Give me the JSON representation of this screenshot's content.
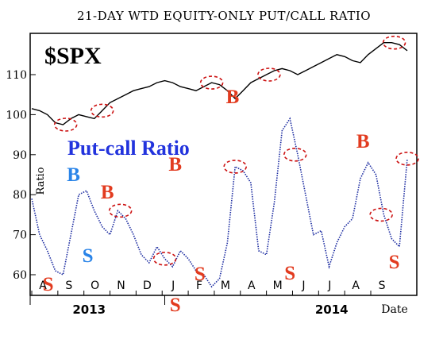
{
  "chart_data": {
    "type": "line",
    "title": "21-DAY WTD EQUITY-ONLY PUT/CALL RATIO",
    "index_label": "$SPX",
    "series_label": "Put-call Ratio",
    "ylabel": "Ratio",
    "xlabel": "Date",
    "yticks": [
      60,
      70,
      80,
      90,
      100,
      110
    ],
    "ylim": [
      55,
      120
    ],
    "months": [
      "A",
      "S",
      "O",
      "N",
      "D",
      "J",
      "F",
      "M",
      "A",
      "M",
      "J",
      "J",
      "A",
      "S"
    ],
    "years": [
      "2013",
      "2014"
    ],
    "x": [
      0,
      0.3,
      0.6,
      0.9,
      1.2,
      1.5,
      1.8,
      2.1,
      2.4,
      2.7,
      3.0,
      3.3,
      3.6,
      3.9,
      4.2,
      4.5,
      4.8,
      5.1,
      5.4,
      5.7,
      6.0,
      6.3,
      6.6,
      6.9,
      7.2,
      7.5,
      7.8,
      8.1,
      8.4,
      8.7,
      9.0,
      9.3,
      9.6,
      9.9,
      10.2,
      10.5,
      10.8,
      11.1,
      11.4,
      11.7,
      12.0,
      12.3,
      12.6,
      12.9,
      13.2,
      13.5,
      13.8,
      14.1,
      14.4
    ],
    "series": [
      {
        "name": "$SPX",
        "color": "#000000",
        "values": [
          101.5,
          101,
          100,
          98,
          97.5,
          99,
          100,
          99.5,
          99,
          101,
          103,
          104,
          105,
          106,
          106.5,
          107,
          108,
          108.5,
          108,
          107,
          106.5,
          106,
          107,
          108,
          107.5,
          106,
          104,
          106,
          108,
          109,
          110,
          111,
          111.5,
          111,
          110,
          111,
          112,
          113,
          114,
          115,
          114.5,
          113.5,
          113,
          115,
          116.5,
          118,
          118,
          117.5,
          116
        ]
      },
      {
        "name": "Put-call Ratio",
        "color": "#1a2aa0",
        "values": [
          79,
          70,
          66,
          61,
          60,
          70,
          80,
          81,
          76,
          72,
          70,
          76,
          74,
          70,
          65,
          63,
          67,
          64,
          62,
          66,
          64,
          61,
          60,
          57,
          59,
          68,
          87,
          86,
          83,
          66,
          65,
          78,
          96,
          99,
          90,
          80,
          70,
          71,
          62,
          68,
          72,
          74,
          84,
          88,
          85,
          75,
          69,
          67,
          89
        ]
      }
    ],
    "markers": [
      {
        "label": "S",
        "color": "#e23b1f"
      },
      {
        "label": "B",
        "color": "#2a84e8"
      },
      {
        "label": "S",
        "color": "#2a84e8"
      },
      {
        "label": "B",
        "color": "#e23b1f"
      },
      {
        "label": "S",
        "color": "#e23b1f"
      },
      {
        "label": "B",
        "color": "#e23b1f"
      },
      {
        "label": "S",
        "color": "#e23b1f"
      },
      {
        "label": "B",
        "color": "#e23b1f"
      },
      {
        "label": "S",
        "color": "#e23b1f"
      },
      {
        "label": "B",
        "color": "#e23b1f"
      },
      {
        "label": "S",
        "color": "#e23b1f"
      }
    ]
  },
  "highlight_color": "#cc1111"
}
